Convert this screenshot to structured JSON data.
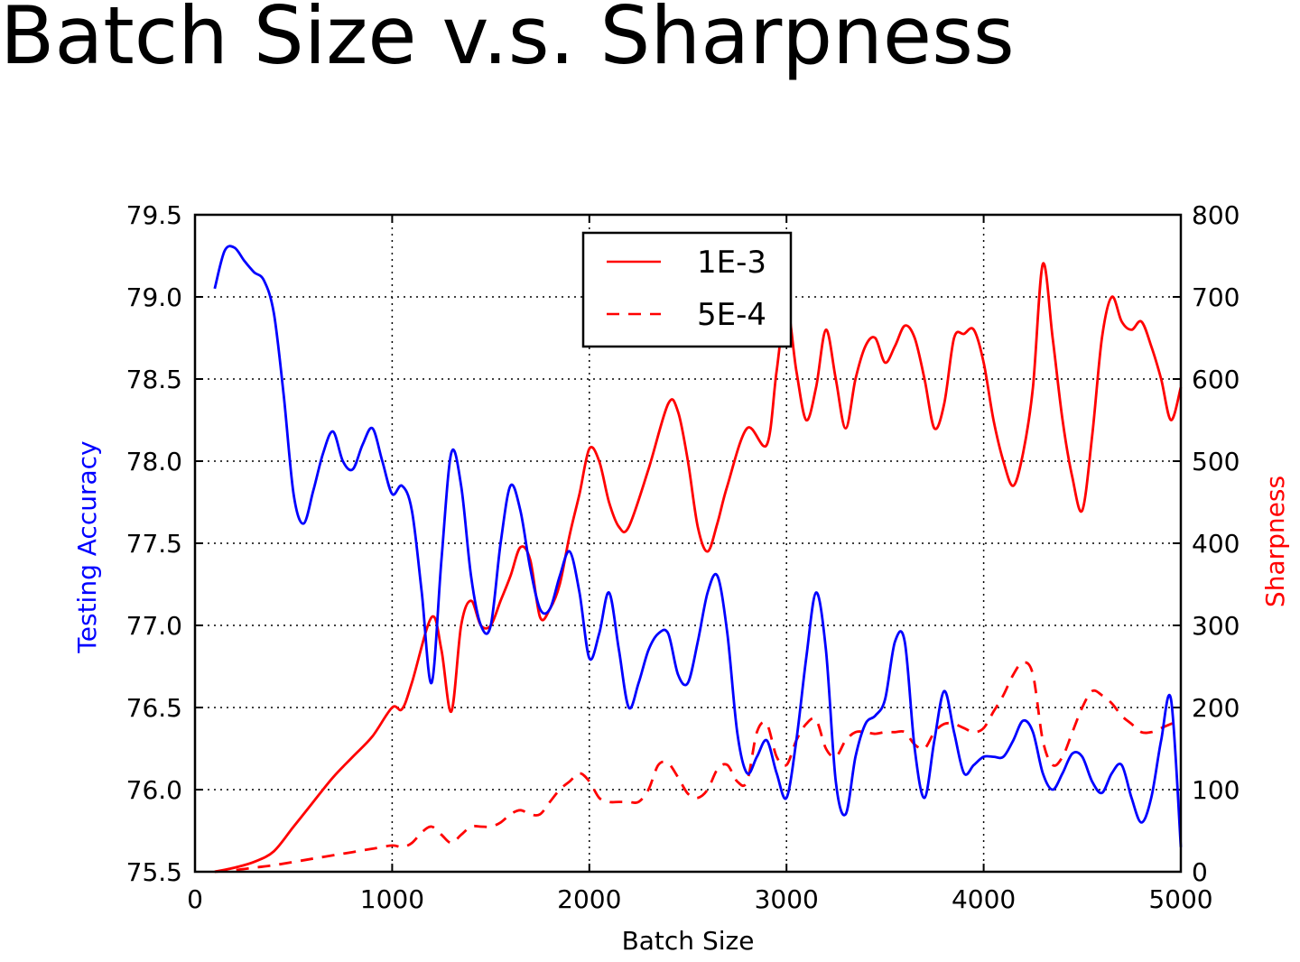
{
  "slide": {
    "title": "Batch Size v.s. Sharpness"
  },
  "colors": {
    "accuracy": "#0000ff",
    "sharpness": "#ff0000",
    "grid": "#000000"
  },
  "chart_data": {
    "type": "line",
    "grid": true,
    "legend_placement": "top-center",
    "xlabel": "Batch Size",
    "ylabel_left": "Testing Accuracy",
    "ylabel_right": "Sharpness",
    "xlim": [
      0,
      5000
    ],
    "ylim_left": [
      75.5,
      79.5
    ],
    "ylim_right": [
      0,
      800
    ],
    "x_ticks": [
      "0",
      "1000",
      "2000",
      "3000",
      "4000",
      "5000"
    ],
    "y_left_ticks": [
      "75.5",
      "76.0",
      "76.5",
      "77.0",
      "77.5",
      "78.0",
      "78.5",
      "79.0",
      "79.5"
    ],
    "y_right_ticks": [
      "0",
      "100",
      "200",
      "300",
      "400",
      "500",
      "600",
      "700",
      "800"
    ],
    "legend": [
      "1E-3",
      "5E-4"
    ],
    "series": [
      {
        "name": "1E-3",
        "axis": "right",
        "color": "#ff0000",
        "dash": "solid",
        "x": [
          100,
          200,
          300,
          400,
          500,
          600,
          700,
          800,
          900,
          1000,
          1050,
          1100,
          1200,
          1250,
          1300,
          1350,
          1400,
          1450,
          1500,
          1550,
          1600,
          1650,
          1700,
          1750,
          1800,
          1850,
          1900,
          1950,
          2000,
          2050,
          2100,
          2150,
          2200,
          2300,
          2400,
          2450,
          2500,
          2550,
          2600,
          2650,
          2700,
          2800,
          2900,
          2950,
          3000,
          3050,
          3100,
          3150,
          3200,
          3250,
          3300,
          3350,
          3400,
          3450,
          3500,
          3550,
          3600,
          3650,
          3700,
          3750,
          3800,
          3850,
          3900,
          3950,
          4000,
          4050,
          4100,
          4150,
          4200,
          4250,
          4300,
          4350,
          4400,
          4450,
          4500,
          4550,
          4600,
          4650,
          4700,
          4750,
          4800,
          4850,
          4900,
          4950,
          5000
        ],
        "y": [
          0,
          5,
          12,
          25,
          55,
          85,
          115,
          140,
          165,
          200,
          198,
          230,
          310,
          270,
          195,
          300,
          330,
          300,
          300,
          330,
          360,
          395,
          380,
          310,
          320,
          350,
          410,
          460,
          515,
          500,
          450,
          420,
          420,
          490,
          570,
          560,
          500,
          420,
          390,
          425,
          470,
          540,
          520,
          610,
          690,
          610,
          550,
          590,
          660,
          600,
          540,
          600,
          640,
          650,
          620,
          640,
          665,
          650,
          600,
          540,
          570,
          650,
          655,
          660,
          620,
          550,
          500,
          470,
          510,
          590,
          740,
          650,
          550,
          480,
          440,
          530,
          650,
          700,
          670,
          660,
          670,
          640,
          600,
          550,
          590
        ]
      },
      {
        "name": "5E-4",
        "axis": "right",
        "color": "#ff0000",
        "dash": "dashed",
        "x": [
          100,
          200,
          300,
          400,
          500,
          600,
          700,
          800,
          900,
          1000,
          1050,
          1100,
          1150,
          1200,
          1250,
          1300,
          1350,
          1400,
          1450,
          1500,
          1550,
          1600,
          1650,
          1700,
          1750,
          1800,
          1850,
          1900,
          1950,
          2000,
          2050,
          2100,
          2150,
          2200,
          2250,
          2300,
          2350,
          2400,
          2450,
          2500,
          2550,
          2600,
          2650,
          2700,
          2750,
          2800,
          2850,
          2900,
          2950,
          3000,
          3050,
          3100,
          3150,
          3200,
          3250,
          3300,
          3350,
          3400,
          3450,
          3500,
          3550,
          3600,
          3650,
          3700,
          3750,
          3800,
          3850,
          3900,
          3950,
          4000,
          4050,
          4100,
          4150,
          4200,
          4250,
          4300,
          4350,
          4400,
          4450,
          4500,
          4550,
          4600,
          4650,
          4700,
          4750,
          4800,
          4850,
          4900,
          4950,
          5000
        ],
        "y": [
          0,
          2,
          5,
          8,
          12,
          16,
          20,
          24,
          28,
          32,
          30,
          35,
          48,
          55,
          45,
          35,
          45,
          55,
          55,
          55,
          60,
          70,
          75,
          70,
          70,
          85,
          100,
          110,
          120,
          110,
          90,
          85,
          85,
          85,
          85,
          100,
          130,
          132,
          115,
          95,
          90,
          100,
          125,
          130,
          110,
          110,
          170,
          180,
          140,
          130,
          160,
          180,
          185,
          150,
          140,
          160,
          170,
          170,
          168,
          170,
          170,
          170,
          155,
          150,
          170,
          180,
          180,
          175,
          170,
          175,
          195,
          215,
          240,
          255,
          240,
          160,
          130,
          140,
          170,
          200,
          220,
          215,
          205,
          190,
          180,
          170,
          170,
          175,
          180,
          185
        ]
      },
      {
        "name": "Testing Accuracy",
        "axis": "left",
        "color": "#0000ff",
        "dash": "solid",
        "x": [
          100,
          150,
          200,
          250,
          300,
          350,
          400,
          450,
          500,
          550,
          600,
          650,
          700,
          750,
          800,
          850,
          900,
          950,
          1000,
          1050,
          1100,
          1150,
          1200,
          1250,
          1300,
          1350,
          1400,
          1450,
          1500,
          1550,
          1600,
          1650,
          1700,
          1750,
          1800,
          1850,
          1900,
          1950,
          2000,
          2050,
          2100,
          2150,
          2200,
          2250,
          2300,
          2350,
          2400,
          2450,
          2500,
          2550,
          2600,
          2650,
          2700,
          2750,
          2800,
          2850,
          2900,
          2950,
          3000,
          3050,
          3100,
          3150,
          3200,
          3250,
          3300,
          3350,
          3400,
          3450,
          3500,
          3550,
          3600,
          3650,
          3700,
          3750,
          3800,
          3850,
          3900,
          3950,
          4000,
          4050,
          4100,
          4150,
          4200,
          4250,
          4300,
          4350,
          4400,
          4450,
          4500,
          4550,
          4600,
          4650,
          4700,
          4750,
          4800,
          4850,
          4900,
          4950,
          5000
        ],
        "y": [
          79.05,
          79.28,
          79.3,
          79.22,
          79.15,
          79.1,
          78.9,
          78.4,
          77.8,
          77.62,
          77.82,
          78.05,
          78.18,
          78.0,
          77.95,
          78.1,
          78.2,
          78.0,
          77.8,
          77.85,
          77.7,
          77.2,
          76.65,
          77.4,
          78.05,
          77.85,
          77.3,
          77.0,
          77.0,
          77.5,
          77.85,
          77.7,
          77.35,
          77.1,
          77.1,
          77.3,
          77.45,
          77.2,
          76.8,
          76.95,
          77.2,
          76.85,
          76.5,
          76.65,
          76.85,
          76.95,
          76.95,
          76.7,
          76.65,
          76.9,
          77.2,
          77.3,
          76.95,
          76.35,
          76.1,
          76.2,
          76.3,
          76.1,
          75.95,
          76.3,
          76.8,
          77.2,
          76.85,
          76.05,
          75.85,
          76.2,
          76.4,
          76.45,
          76.55,
          76.9,
          76.9,
          76.25,
          75.95,
          76.3,
          76.6,
          76.35,
          76.1,
          76.15,
          76.2,
          76.2,
          76.2,
          76.3,
          76.42,
          76.35,
          76.1,
          76.0,
          76.1,
          76.22,
          76.2,
          76.05,
          75.98,
          76.1,
          76.15,
          75.95,
          75.8,
          75.95,
          76.3,
          76.55,
          75.65
        ]
      }
    ]
  }
}
